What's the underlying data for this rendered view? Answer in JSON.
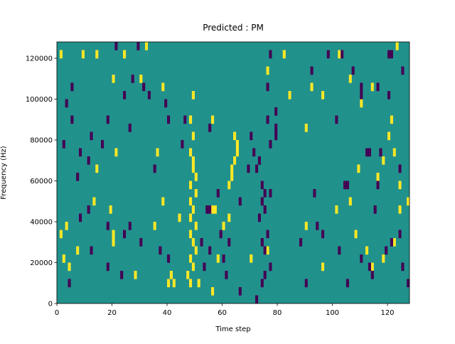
{
  "chart_data": {
    "type": "heatmap",
    "title": "Predicted : PM",
    "xlabel": "Time step",
    "ylabel": "Frequency (Hz)",
    "xlim": [
      0,
      128
    ],
    "ylim": [
      0,
      128000
    ],
    "xticks": [
      0,
      20,
      40,
      60,
      80,
      100,
      120
    ],
    "yticks": [
      0,
      20000,
      40000,
      60000,
      80000,
      100000,
      120000
    ],
    "zlim": [
      -1,
      1
    ],
    "colormap": [
      "#440154",
      "#21918c",
      "#fde725"
    ],
    "fill_value": 0,
    "cells": [
      [
        1,
        120000,
        1
      ],
      [
        9,
        120000,
        1
      ],
      [
        14,
        120000,
        1
      ],
      [
        24,
        120000,
        1
      ],
      [
        32,
        124000,
        1
      ],
      [
        20,
        108000,
        1
      ],
      [
        30,
        108000,
        1
      ],
      [
        38,
        104000,
        1
      ],
      [
        49,
        100000,
        1
      ],
      [
        48,
        88000,
        1
      ],
      [
        49,
        80000,
        1
      ],
      [
        56,
        88000,
        1
      ],
      [
        64,
        80000,
        1
      ],
      [
        65,
        76000,
        1
      ],
      [
        65,
        72000,
        1
      ],
      [
        64,
        68000,
        1
      ],
      [
        63,
        64000,
        1
      ],
      [
        63,
        60000,
        1
      ],
      [
        62,
        56000,
        1
      ],
      [
        48,
        72000,
        1
      ],
      [
        49,
        68000,
        1
      ],
      [
        49,
        64000,
        1
      ],
      [
        50,
        60000,
        1
      ],
      [
        48,
        56000,
        1
      ],
      [
        50,
        52000,
        1
      ],
      [
        48,
        48000,
        1
      ],
      [
        49,
        44000,
        1
      ],
      [
        48,
        40000,
        1
      ],
      [
        50,
        36000,
        1
      ],
      [
        48,
        32000,
        1
      ],
      [
        49,
        28000,
        1
      ],
      [
        50,
        24000,
        1
      ],
      [
        48,
        20000,
        1
      ],
      [
        49,
        16000,
        1
      ],
      [
        47,
        12000,
        1
      ],
      [
        48,
        8000,
        1
      ],
      [
        51,
        8000,
        1
      ],
      [
        42,
        8000,
        1
      ],
      [
        40,
        8000,
        1
      ],
      [
        41,
        12000,
        1
      ],
      [
        56,
        44000,
        1
      ],
      [
        57,
        44000,
        1
      ],
      [
        20,
        32000,
        1
      ],
      [
        20,
        28000,
        1
      ],
      [
        13,
        48000,
        1
      ],
      [
        19,
        44000,
        1
      ],
      [
        1,
        32000,
        1
      ],
      [
        3,
        36000,
        1
      ],
      [
        7,
        24000,
        1
      ],
      [
        2,
        20000,
        1
      ],
      [
        4,
        16000,
        1
      ],
      [
        28,
        12000,
        1
      ],
      [
        56,
        4000,
        1
      ],
      [
        14,
        64000,
        1
      ],
      [
        21,
        72000,
        1
      ],
      [
        36,
        72000,
        1
      ],
      [
        38,
        48000,
        1
      ],
      [
        35,
        36000,
        1
      ],
      [
        44,
        40000,
        1
      ],
      [
        58,
        20000,
        1
      ],
      [
        60,
        36000,
        1
      ],
      [
        62,
        40000,
        1
      ],
      [
        70,
        20000,
        1
      ],
      [
        76,
        24000,
        1
      ],
      [
        90,
        36000,
        1
      ],
      [
        96,
        16000,
        1
      ],
      [
        101,
        44000,
        1
      ],
      [
        106,
        48000,
        1
      ],
      [
        108,
        32000,
        1
      ],
      [
        112,
        24000,
        1
      ],
      [
        114,
        16000,
        1
      ],
      [
        118,
        20000,
        1
      ],
      [
        122,
        28000,
        1
      ],
      [
        124,
        44000,
        1
      ],
      [
        127,
        48000,
        1
      ],
      [
        124,
        56000,
        1
      ],
      [
        116,
        60000,
        1
      ],
      [
        109,
        64000,
        1
      ],
      [
        118,
        68000,
        1
      ],
      [
        122,
        72000,
        1
      ],
      [
        120,
        80000,
        1
      ],
      [
        121,
        88000,
        1
      ],
      [
        114,
        104000,
        1
      ],
      [
        106,
        108000,
        1
      ],
      [
        102,
        120000,
        1
      ],
      [
        123,
        124000,
        1
      ],
      [
        110,
        96000,
        1
      ],
      [
        90,
        84000,
        1
      ],
      [
        92,
        104000,
        1
      ],
      [
        76,
        112000,
        1
      ],
      [
        82,
        120000,
        1
      ],
      [
        84,
        100000,
        1
      ],
      [
        96,
        100000,
        1
      ],
      [
        27,
        108000,
        -1
      ],
      [
        29,
        124000,
        -1
      ],
      [
        31,
        104000,
        -1
      ],
      [
        33,
        100000,
        -1
      ],
      [
        39,
        96000,
        -1
      ],
      [
        46,
        88000,
        -1
      ],
      [
        55,
        84000,
        -1
      ],
      [
        58,
        52000,
        -1
      ],
      [
        59,
        32000,
        -1
      ],
      [
        60,
        20000,
        -1
      ],
      [
        61,
        12000,
        -1
      ],
      [
        55,
        24000,
        -1
      ],
      [
        52,
        28000,
        -1
      ],
      [
        53,
        16000,
        -1
      ],
      [
        55,
        44000,
        -1
      ],
      [
        62,
        28000,
        -1
      ],
      [
        66,
        4000,
        -1
      ],
      [
        71,
        72000,
        -1
      ],
      [
        73,
        68000,
        -1
      ],
      [
        72,
        64000,
        -1
      ],
      [
        74,
        56000,
        -1
      ],
      [
        75,
        52000,
        -1
      ],
      [
        77,
        52000,
        -1
      ],
      [
        74,
        48000,
        -1
      ],
      [
        75,
        44000,
        -1
      ],
      [
        73,
        40000,
        -1
      ],
      [
        76,
        32000,
        -1
      ],
      [
        74,
        28000,
        -1
      ],
      [
        75,
        24000,
        -1
      ],
      [
        75,
        12000,
        -1
      ],
      [
        77,
        16000,
        -1
      ],
      [
        74,
        8000,
        -1
      ],
      [
        72,
        0,
        -1
      ],
      [
        79,
        80000,
        -1
      ],
      [
        79,
        84000,
        -1
      ],
      [
        76,
        88000,
        -1
      ],
      [
        77,
        76000,
        -1
      ],
      [
        70,
        80000,
        -1
      ],
      [
        69,
        64000,
        -1
      ],
      [
        66,
        48000,
        -1
      ],
      [
        88,
        28000,
        -1
      ],
      [
        90,
        8000,
        -1
      ],
      [
        93,
        52000,
        -1
      ],
      [
        94,
        36000,
        -1
      ],
      [
        96,
        32000,
        -1
      ],
      [
        102,
        24000,
        -1
      ],
      [
        105,
        8000,
        -1
      ],
      [
        110,
        20000,
        -1
      ],
      [
        113,
        16000,
        -1
      ],
      [
        114,
        12000,
        -1
      ],
      [
        121,
        28000,
        -1
      ],
      [
        125,
        16000,
        -1
      ],
      [
        127,
        8000,
        -1
      ],
      [
        119,
        24000,
        -1
      ],
      [
        104,
        56000,
        -1
      ],
      [
        105,
        56000,
        -1
      ],
      [
        116,
        56000,
        -1
      ],
      [
        115,
        44000,
        -1
      ],
      [
        124,
        64000,
        -1
      ],
      [
        124,
        32000,
        -1
      ],
      [
        112,
        72000,
        -1
      ],
      [
        113,
        72000,
        -1
      ],
      [
        117,
        72000,
        -1
      ],
      [
        110,
        104000,
        -1
      ],
      [
        107,
        112000,
        -1
      ],
      [
        116,
        104000,
        -1
      ],
      [
        120,
        120000,
        -1
      ],
      [
        121,
        120000,
        -1
      ],
      [
        125,
        112000,
        -1
      ],
      [
        101,
        88000,
        -1
      ],
      [
        110,
        100000,
        -1
      ],
      [
        120,
        100000,
        -1
      ],
      [
        77,
        120000,
        -1
      ],
      [
        76,
        104000,
        -1
      ],
      [
        79,
        92000,
        -1
      ],
      [
        92,
        112000,
        -1
      ],
      [
        98,
        120000,
        -1
      ],
      [
        103,
        120000,
        -1
      ],
      [
        5,
        88000,
        -1
      ],
      [
        3,
        96000,
        -1
      ],
      [
        5,
        104000,
        -1
      ],
      [
        2,
        76000,
        -1
      ],
      [
        7,
        60000,
        -1
      ],
      [
        8,
        72000,
        -1
      ],
      [
        11,
        68000,
        -1
      ],
      [
        12,
        80000,
        -1
      ],
      [
        16,
        76000,
        -1
      ],
      [
        21,
        124000,
        -1
      ],
      [
        8,
        40000,
        -1
      ],
      [
        11,
        44000,
        -1
      ],
      [
        18,
        36000,
        -1
      ],
      [
        24,
        32000,
        -1
      ],
      [
        26,
        36000,
        -1
      ],
      [
        18,
        16000,
        -1
      ],
      [
        23,
        12000,
        -1
      ],
      [
        30,
        28000,
        -1
      ],
      [
        37,
        24000,
        -1
      ],
      [
        40,
        20000,
        -1
      ],
      [
        54,
        44000,
        -1
      ],
      [
        26,
        84000,
        -1
      ],
      [
        24,
        100000,
        -1
      ],
      [
        18,
        88000,
        -1
      ],
      [
        35,
        64000,
        -1
      ],
      [
        40,
        88000,
        -1
      ],
      [
        45,
        76000,
        -1
      ],
      [
        12,
        24000,
        -1
      ],
      [
        4,
        8000,
        -1
      ]
    ]
  }
}
